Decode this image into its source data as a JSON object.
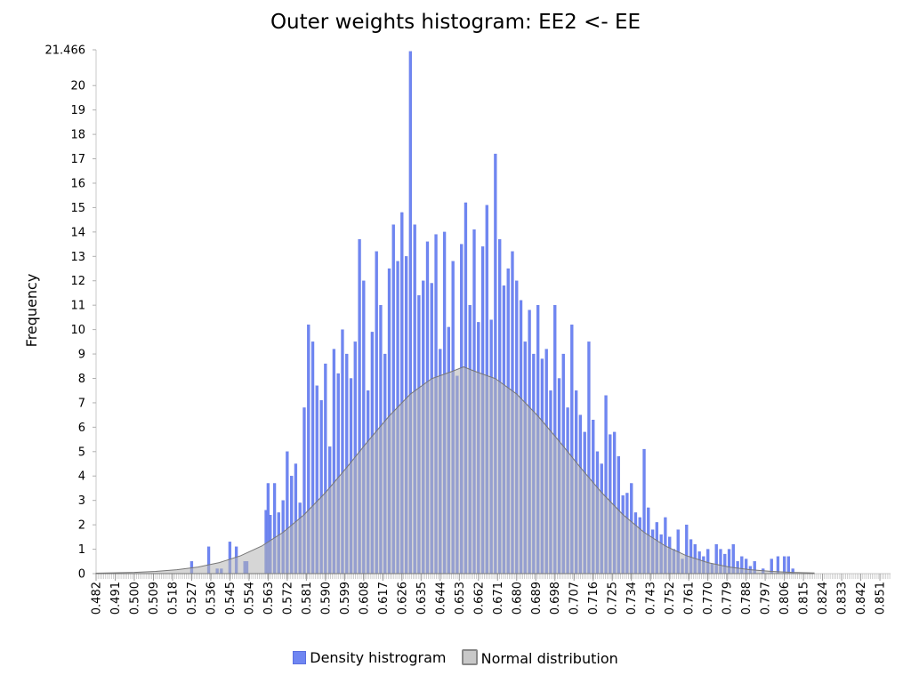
{
  "chart_data": {
    "type": "bar",
    "title": "Outer weights histogram: EE2 <- EE",
    "xlabel": "",
    "ylabel": "Frequency",
    "xlim": [
      0.482,
      0.856
    ],
    "ylim": [
      0,
      21.466
    ],
    "x_tick_labels": [
      "0.482",
      "0.491",
      "0.500",
      "0.509",
      "0.518",
      "0.527",
      "0.536",
      "0.545",
      "0.554",
      "0.563",
      "0.572",
      "0.581",
      "0.590",
      "0.599",
      "0.608",
      "0.617",
      "0.626",
      "0.635",
      "0.644",
      "0.653",
      "0.662",
      "0.671",
      "0.680",
      "0.689",
      "0.698",
      "0.707",
      "0.716",
      "0.725",
      "0.734",
      "0.743",
      "0.752",
      "0.761",
      "0.770",
      "0.779",
      "0.788",
      "0.797",
      "0.806",
      "0.815",
      "0.824",
      "0.833",
      "0.842",
      "0.851"
    ],
    "y_tick_labels": [
      "0",
      "1",
      "2",
      "3",
      "4",
      "5",
      "6",
      "7",
      "8",
      "9",
      "10",
      "11",
      "12",
      "13",
      "14",
      "15",
      "16",
      "17",
      "18",
      "19",
      "20",
      "21.466"
    ],
    "legend": {
      "position": "bottom",
      "entries": [
        "Density histrogram",
        "Normal distribution"
      ]
    },
    "colors": {
      "histogram": "#6f86f2",
      "histogram_stroke": "#5b70e0",
      "normal_fill": "#b4b4b4",
      "normal_stroke": "#777777"
    },
    "series": [
      {
        "name": "Density histrogram",
        "type": "bar",
        "x": [
          0.527,
          0.535,
          0.539,
          0.541,
          0.545,
          0.548,
          0.552,
          0.553,
          0.562,
          0.563,
          0.564,
          0.566,
          0.568,
          0.57,
          0.572,
          0.574,
          0.576,
          0.578,
          0.58,
          0.582,
          0.584,
          0.586,
          0.588,
          0.59,
          0.592,
          0.594,
          0.596,
          0.598,
          0.6,
          0.602,
          0.604,
          0.606,
          0.608,
          0.61,
          0.612,
          0.614,
          0.616,
          0.618,
          0.62,
          0.622,
          0.624,
          0.626,
          0.628,
          0.63,
          0.632,
          0.634,
          0.636,
          0.638,
          0.64,
          0.642,
          0.644,
          0.646,
          0.648,
          0.65,
          0.652,
          0.654,
          0.656,
          0.658,
          0.66,
          0.662,
          0.664,
          0.666,
          0.668,
          0.67,
          0.672,
          0.674,
          0.676,
          0.678,
          0.68,
          0.682,
          0.684,
          0.686,
          0.688,
          0.69,
          0.692,
          0.694,
          0.696,
          0.698,
          0.7,
          0.702,
          0.704,
          0.706,
          0.708,
          0.71,
          0.712,
          0.714,
          0.716,
          0.718,
          0.72,
          0.722,
          0.724,
          0.726,
          0.728,
          0.73,
          0.732,
          0.734,
          0.736,
          0.738,
          0.74,
          0.742,
          0.744,
          0.746,
          0.748,
          0.75,
          0.752,
          0.754,
          0.756,
          0.758,
          0.76,
          0.762,
          0.764,
          0.766,
          0.768,
          0.77,
          0.772,
          0.774,
          0.776,
          0.778,
          0.78,
          0.782,
          0.784,
          0.786,
          0.788,
          0.79,
          0.792,
          0.796,
          0.8,
          0.803,
          0.806,
          0.808,
          0.81
        ],
        "values": [
          0.5,
          1.1,
          0.2,
          0.2,
          1.3,
          1.1,
          0.5,
          0.5,
          2.6,
          3.7,
          2.4,
          3.7,
          2.5,
          3.0,
          5.0,
          4.0,
          4.5,
          2.9,
          6.8,
          10.2,
          9.5,
          7.7,
          7.1,
          8.6,
          5.2,
          9.2,
          8.2,
          10.0,
          9.0,
          8.0,
          9.5,
          13.7,
          12.0,
          7.5,
          9.9,
          13.2,
          11.0,
          9.0,
          12.5,
          14.3,
          12.8,
          14.8,
          13.0,
          21.4,
          14.3,
          11.4,
          12.0,
          13.6,
          11.9,
          13.9,
          9.2,
          14.0,
          10.1,
          12.8,
          8.1,
          13.5,
          15.2,
          11.0,
          14.1,
          10.3,
          13.4,
          15.1,
          10.4,
          17.2,
          13.7,
          11.8,
          12.5,
          13.2,
          12.0,
          11.2,
          9.5,
          10.8,
          9.0,
          11.0,
          8.8,
          9.2,
          7.5,
          11.0,
          8.0,
          9.0,
          6.8,
          10.2,
          7.5,
          6.5,
          5.8,
          9.5,
          6.3,
          5.0,
          4.5,
          7.3,
          5.7,
          5.8,
          4.8,
          3.2,
          3.3,
          3.7,
          2.5,
          2.3,
          5.1,
          2.7,
          1.8,
          2.1,
          1.6,
          2.3,
          1.5,
          1.0,
          1.8,
          0.6,
          2.0,
          1.4,
          1.2,
          0.9,
          0.7,
          1.0,
          0.4,
          1.2,
          1.0,
          0.8,
          1.0,
          1.2,
          0.5,
          0.7,
          0.6,
          0.3,
          0.5,
          0.2,
          0.6,
          0.7,
          0.7,
          0.7,
          0.2
        ]
      },
      {
        "name": "Normal distribution",
        "type": "area",
        "x": [
          0.482,
          0.49,
          0.5,
          0.51,
          0.52,
          0.53,
          0.54,
          0.55,
          0.56,
          0.57,
          0.58,
          0.59,
          0.6,
          0.61,
          0.62,
          0.63,
          0.64,
          0.65,
          0.655,
          0.66,
          0.67,
          0.68,
          0.69,
          0.7,
          0.71,
          0.72,
          0.73,
          0.74,
          0.75,
          0.76,
          0.77,
          0.78,
          0.79,
          0.8,
          0.81,
          0.82
        ],
        "values": [
          0.02,
          0.03,
          0.05,
          0.09,
          0.16,
          0.27,
          0.45,
          0.73,
          1.13,
          1.69,
          2.42,
          3.32,
          4.35,
          5.43,
          6.46,
          7.36,
          7.99,
          8.3,
          8.47,
          8.3,
          7.99,
          7.36,
          6.46,
          5.43,
          4.35,
          3.32,
          2.42,
          1.69,
          1.13,
          0.73,
          0.45,
          0.27,
          0.16,
          0.09,
          0.05,
          0.03
        ]
      }
    ]
  }
}
